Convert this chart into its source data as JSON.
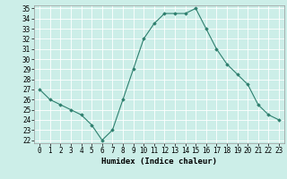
{
  "x": [
    0,
    1,
    2,
    3,
    4,
    5,
    6,
    7,
    8,
    9,
    10,
    11,
    12,
    13,
    14,
    15,
    16,
    17,
    18,
    19,
    20,
    21,
    22,
    23
  ],
  "y": [
    27,
    26,
    25.5,
    25,
    24.5,
    23.5,
    22,
    23,
    26,
    29,
    32,
    33.5,
    34.5,
    34.5,
    34.5,
    35,
    33,
    31,
    29.5,
    28.5,
    27.5,
    25.5,
    24.5,
    24
  ],
  "xlabel": "Humidex (Indice chaleur)",
  "ylim": [
    22,
    35
  ],
  "xlim": [
    -0.5,
    23.5
  ],
  "yticks": [
    22,
    23,
    24,
    25,
    26,
    27,
    28,
    29,
    30,
    31,
    32,
    33,
    34,
    35
  ],
  "xticks": [
    0,
    1,
    2,
    3,
    4,
    5,
    6,
    7,
    8,
    9,
    10,
    11,
    12,
    13,
    14,
    15,
    16,
    17,
    18,
    19,
    20,
    21,
    22,
    23
  ],
  "line_color": "#2e7f6e",
  "marker": "D",
  "marker_size": 1.8,
  "bg_color": "#cceee8",
  "grid_color": "#ffffff",
  "tick_label_size": 5.5,
  "xlabel_size": 6.5,
  "linewidth": 0.8
}
